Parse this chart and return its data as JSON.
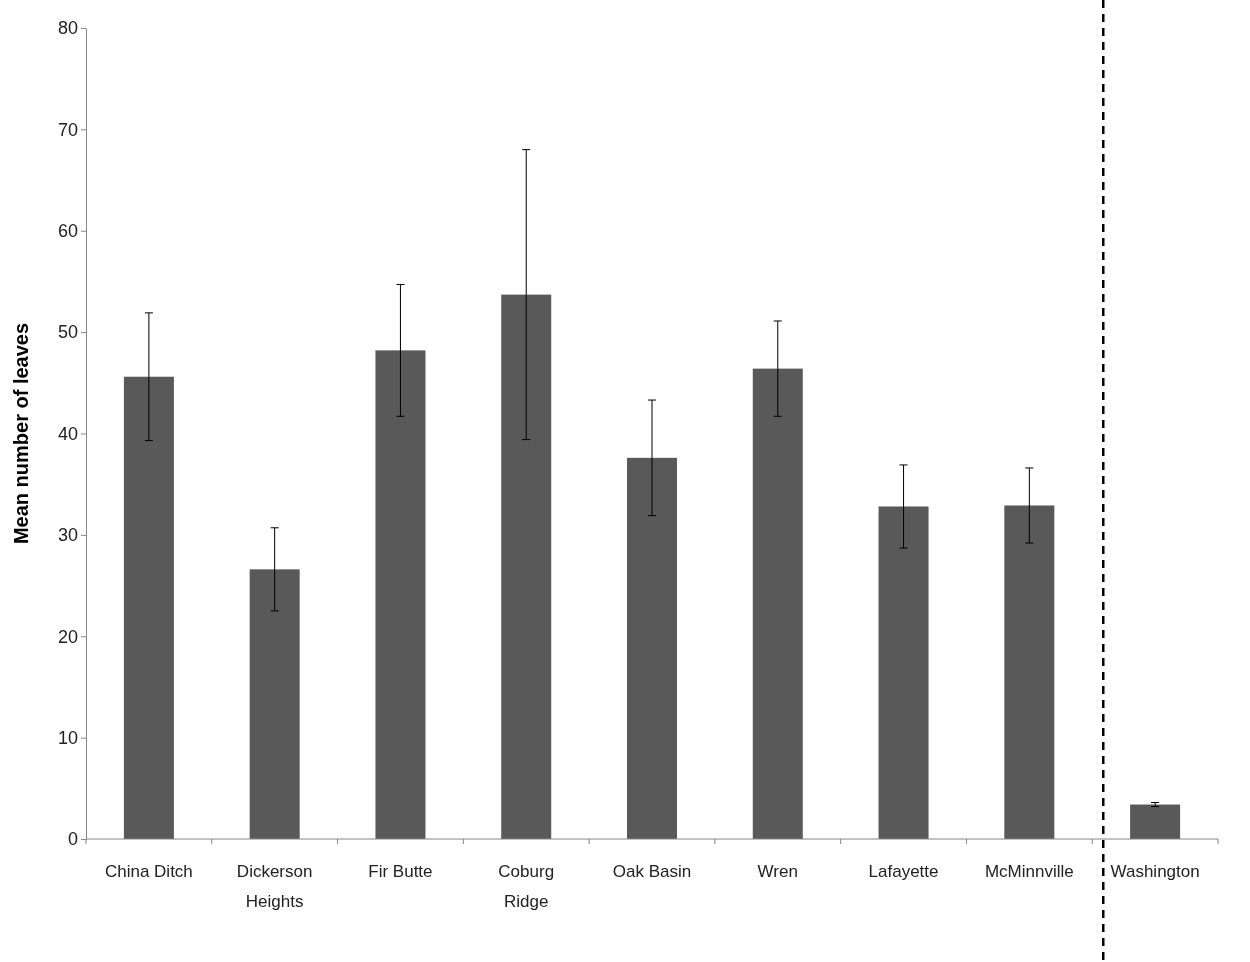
{
  "chart_data": {
    "type": "bar",
    "ylabel": "Mean number of leaves",
    "categories": [
      "China Ditch",
      "Dickerson\nHeights",
      "Fir Butte",
      "Coburg\nRidge",
      "Oak Basin",
      "Wren",
      "Lafayette",
      "McMinnville",
      "Washington"
    ],
    "values": [
      45.6,
      26.6,
      48.2,
      53.7,
      37.6,
      46.4,
      32.8,
      32.9,
      3.4
    ],
    "errors": [
      6.3,
      4.1,
      6.5,
      14.3,
      5.7,
      4.7,
      4.1,
      3.7,
      0.2
    ],
    "color": "#595959",
    "ylim": [
      0,
      80
    ],
    "yticks": [
      0,
      10,
      20,
      30,
      40,
      50,
      60,
      70,
      80
    ],
    "grid": false
  }
}
